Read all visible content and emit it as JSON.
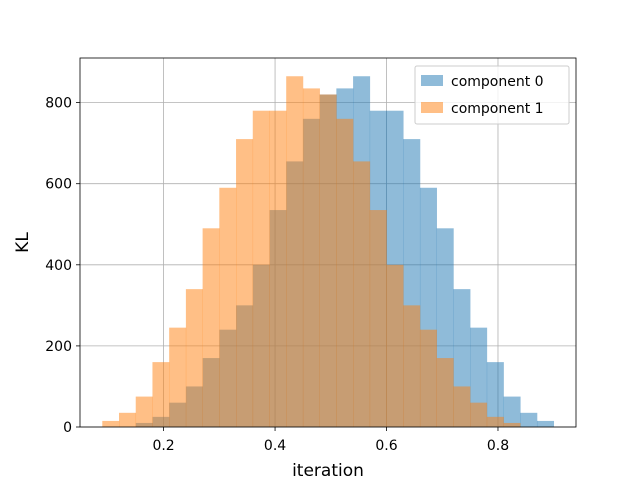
{
  "chart_data": {
    "type": "bar",
    "subtype": "overlaid-histogram",
    "title": "",
    "xlabel": "iteration",
    "ylabel": "KL",
    "xlim": [
      0.05,
      0.94
    ],
    "ylim": [
      0,
      910
    ],
    "xticks": [
      0.2,
      0.4,
      0.6,
      0.8
    ],
    "xtick_labels": [
      "0.2",
      "0.4",
      "0.6",
      "0.8"
    ],
    "yticks": [
      0,
      200,
      400,
      600,
      800
    ],
    "ytick_labels": [
      "0",
      "200",
      "400",
      "600",
      "800"
    ],
    "grid": true,
    "legend_position": "top-right",
    "series": [
      {
        "name": "component 0",
        "color": "#1f77b4",
        "alpha": 0.5,
        "bin_edges": [
          0.15,
          0.18,
          0.21,
          0.24,
          0.27,
          0.3,
          0.33,
          0.36,
          0.39,
          0.42,
          0.45,
          0.48,
          0.51,
          0.54,
          0.57,
          0.6,
          0.63,
          0.66,
          0.69,
          0.72,
          0.75,
          0.78,
          0.81,
          0.84,
          0.87,
          0.9
        ],
        "counts": [
          10,
          25,
          60,
          100,
          170,
          240,
          300,
          400,
          535,
          655,
          760,
          820,
          835,
          865,
          780,
          780,
          710,
          590,
          490,
          340,
          245,
          160,
          75,
          35,
          15
        ]
      },
      {
        "name": "component 1",
        "color": "#ff7f0e",
        "alpha": 0.5,
        "bin_edges": [
          0.09,
          0.12,
          0.15,
          0.18,
          0.21,
          0.24,
          0.27,
          0.3,
          0.33,
          0.36,
          0.39,
          0.42,
          0.45,
          0.48,
          0.51,
          0.54,
          0.57,
          0.6,
          0.63,
          0.66,
          0.69,
          0.72,
          0.75,
          0.78,
          0.81,
          0.84
        ],
        "counts": [
          15,
          35,
          75,
          160,
          245,
          340,
          490,
          590,
          710,
          780,
          780,
          865,
          835,
          820,
          760,
          655,
          535,
          400,
          300,
          240,
          170,
          100,
          60,
          25,
          10
        ]
      }
    ]
  }
}
